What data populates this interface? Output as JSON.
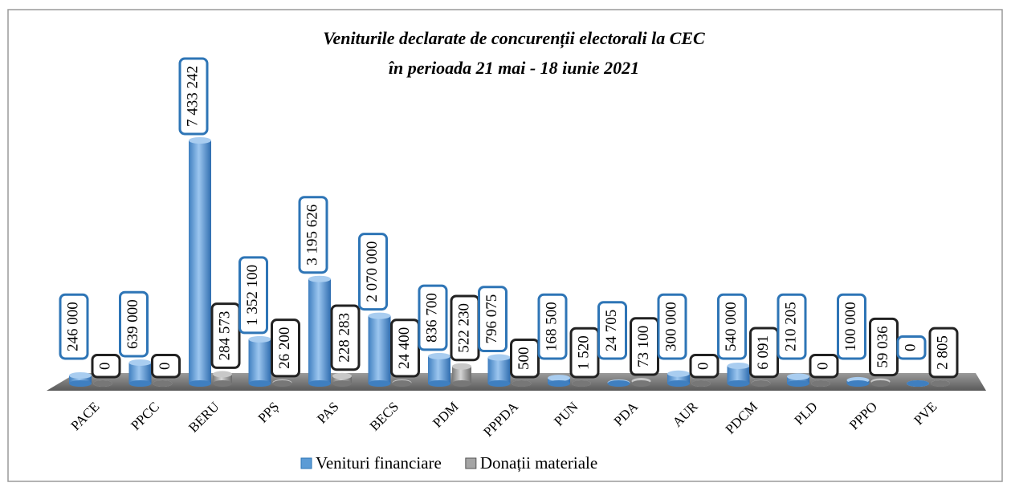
{
  "chart_data": {
    "type": "bar3d",
    "title": [
      "Veniturile declarate de concurenții  electorali la CEC",
      "în perioada 21 mai - 18 iunie 2021"
    ],
    "categories": [
      "PACE",
      "PPCC",
      "BERU",
      "PPȘ",
      "PAS",
      "BECS",
      "PDM",
      "PPPDA",
      "PUN",
      "PDA",
      "AUR",
      "PDCM",
      "PLD",
      "PPPO",
      "PVE"
    ],
    "series": [
      {
        "name": "Venituri financiare",
        "color": "#5b9bd5",
        "values": [
          246000,
          639000,
          7433242,
          1352100,
          3195626,
          2070000,
          836700,
          796075,
          168500,
          24705,
          300000,
          540000,
          210205,
          100000,
          0
        ],
        "value_labels": [
          "246 000",
          "639 000",
          "7 433 242",
          "1 352 100",
          "3 195 626",
          "2 070 000",
          "836 700",
          "796 075",
          "168 500",
          "24 705",
          "300 000",
          "540 000",
          "210 205",
          "100 000",
          "0"
        ]
      },
      {
        "name": "Donații materiale",
        "color": "#a5a5a5",
        "values": [
          0,
          0,
          284573,
          26200,
          228283,
          24400,
          522230,
          500,
          1520,
          73100,
          0,
          6091,
          0,
          59036,
          2805
        ],
        "value_labels": [
          "0",
          "0",
          "284 573",
          "26 200",
          "228 283",
          "24 400",
          "522 230",
          "500",
          "1 520",
          "73 100",
          "0",
          "6 091",
          "0",
          "59 036",
          "2 805"
        ]
      }
    ],
    "legend": "bottom"
  }
}
